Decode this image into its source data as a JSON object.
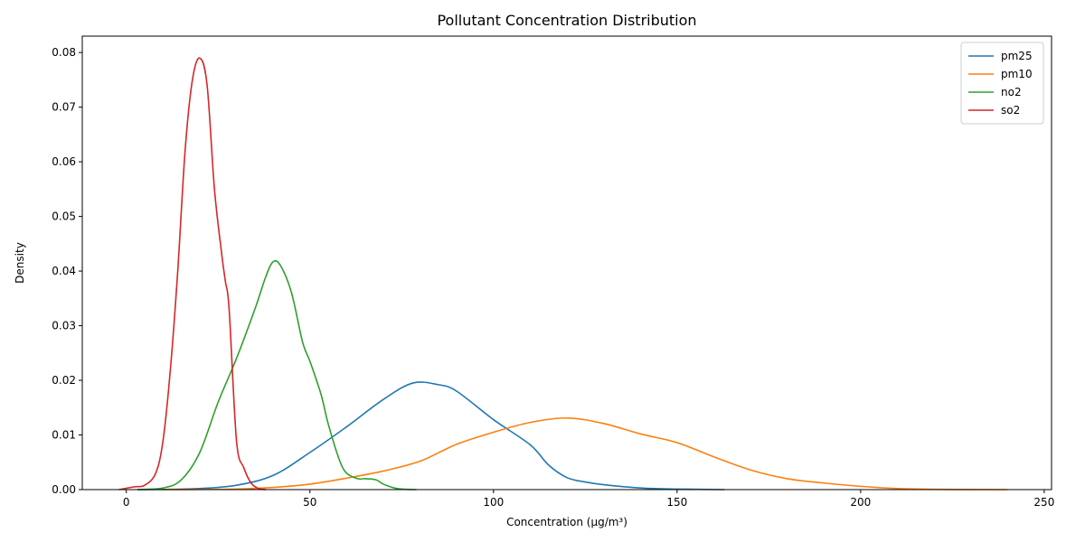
{
  "chart_data": {
    "type": "line",
    "title": "Pollutant Concentration Distribution",
    "xlabel": "Concentration (µg/m³)",
    "ylabel": "Density",
    "xlim": [
      -12,
      252
    ],
    "ylim": [
      0,
      0.083
    ],
    "xticks": [
      0,
      50,
      100,
      150,
      200,
      250
    ],
    "xtick_labels": [
      "0",
      "50",
      "100",
      "150",
      "200",
      "250"
    ],
    "yticks": [
      0,
      0.01,
      0.02,
      0.03,
      0.04,
      0.05,
      0.06,
      0.07,
      0.08
    ],
    "ytick_labels": [
      "0.00",
      "0.01",
      "0.02",
      "0.03",
      "0.04",
      "0.05",
      "0.06",
      "0.07",
      "0.08"
    ],
    "grid": false,
    "legend": "top-right",
    "series": [
      {
        "name": "pm25",
        "color": "#1f77b4",
        "x": [
          3,
          10,
          20,
          30,
          40,
          50,
          60,
          70,
          78,
          85,
          90,
          100,
          110,
          115,
          120,
          125,
          130,
          140,
          150,
          163
        ],
        "y": [
          0,
          3e-05,
          0.0002,
          0.0008,
          0.0026,
          0.0068,
          0.0115,
          0.0165,
          0.0195,
          0.0192,
          0.018,
          0.0128,
          0.0082,
          0.0045,
          0.0022,
          0.0014,
          0.0009,
          0.0003,
          0.0001,
          0
        ]
      },
      {
        "name": "pm10",
        "color": "#ff7f0e",
        "x": [
          10,
          20,
          30,
          40,
          50,
          60,
          70,
          80,
          90,
          100,
          110,
          120,
          130,
          140,
          150,
          160,
          170,
          180,
          190,
          200,
          210,
          220,
          240
        ],
        "y": [
          0,
          3e-05,
          0.0001,
          0.0004,
          0.001,
          0.0021,
          0.0034,
          0.0052,
          0.0083,
          0.0105,
          0.0123,
          0.0131,
          0.0121,
          0.0102,
          0.0086,
          0.006,
          0.0036,
          0.002,
          0.0012,
          0.0006,
          0.0002,
          5e-05,
          0
        ]
      },
      {
        "name": "no2",
        "color": "#2ca02c",
        "x": [
          3,
          10,
          15,
          20,
          25,
          30,
          35,
          38,
          40,
          42,
          45,
          48,
          50,
          53,
          55,
          58,
          60,
          63,
          65,
          68,
          70,
          73,
          75,
          79
        ],
        "y": [
          0,
          0.0003,
          0.0018,
          0.0068,
          0.016,
          0.024,
          0.033,
          0.039,
          0.0417,
          0.041,
          0.036,
          0.027,
          0.0235,
          0.0175,
          0.012,
          0.0055,
          0.003,
          0.002,
          0.002,
          0.0018,
          0.001,
          0.0003,
          0.0001,
          0
        ]
      },
      {
        "name": "so2",
        "color": "#d62728",
        "x": [
          -2,
          2,
          5,
          8,
          10,
          12,
          14,
          16,
          18,
          20,
          22,
          24,
          26,
          27,
          28,
          30,
          32,
          34,
          36,
          38
        ],
        "y": [
          0,
          0.0005,
          0.0008,
          0.003,
          0.009,
          0.022,
          0.04,
          0.062,
          0.075,
          0.079,
          0.074,
          0.055,
          0.043,
          0.038,
          0.033,
          0.009,
          0.004,
          0.0012,
          0.0002,
          0
        ]
      }
    ]
  }
}
